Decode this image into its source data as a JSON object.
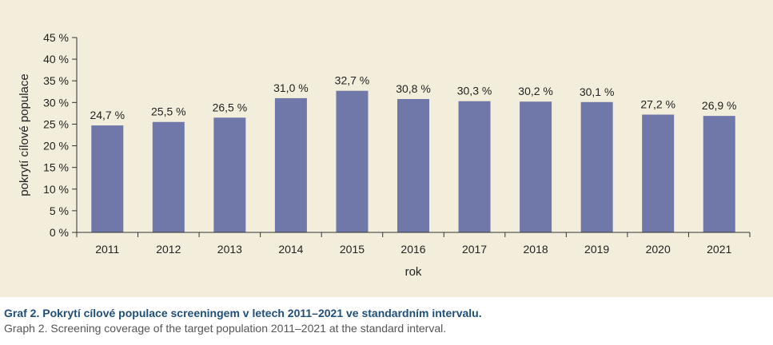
{
  "chart_data": {
    "type": "bar",
    "categories": [
      "2011",
      "2012",
      "2013",
      "2014",
      "2015",
      "2016",
      "2017",
      "2018",
      "2019",
      "2020",
      "2021"
    ],
    "values": [
      24.7,
      25.5,
      26.5,
      31.0,
      32.7,
      30.8,
      30.3,
      30.2,
      30.1,
      27.2,
      26.9
    ],
    "value_labels": [
      "24,7 %",
      "25,5 %",
      "26,5 %",
      "31,0 %",
      "32,7 %",
      "30,8 %",
      "30,3 %",
      "30,2 %",
      "30,1 %",
      "27,2 %",
      "26,9 %"
    ],
    "yticks": [
      0,
      5,
      10,
      15,
      20,
      25,
      30,
      35,
      40,
      45
    ],
    "ytick_labels": [
      "0 %",
      "5 %",
      "10 %",
      "15 %",
      "20 %",
      "25 %",
      "30 %",
      "35 %",
      "40 %",
      "45 %"
    ],
    "ylim": [
      0,
      45
    ],
    "xlabel": "rok",
    "ylabel": "pokrytí cílové populace",
    "grid": false,
    "colors": {
      "bar": "#6f78a8",
      "background": "#f3eedb",
      "axis": "#333333"
    }
  },
  "caption": {
    "czech": "Graf 2. Pokrytí cílové populace screeningem v letech 2011–2021 ve standardním intervalu.",
    "english": "Graph 2. Screening coverage of the target population 2011–2021 at the standard interval."
  }
}
